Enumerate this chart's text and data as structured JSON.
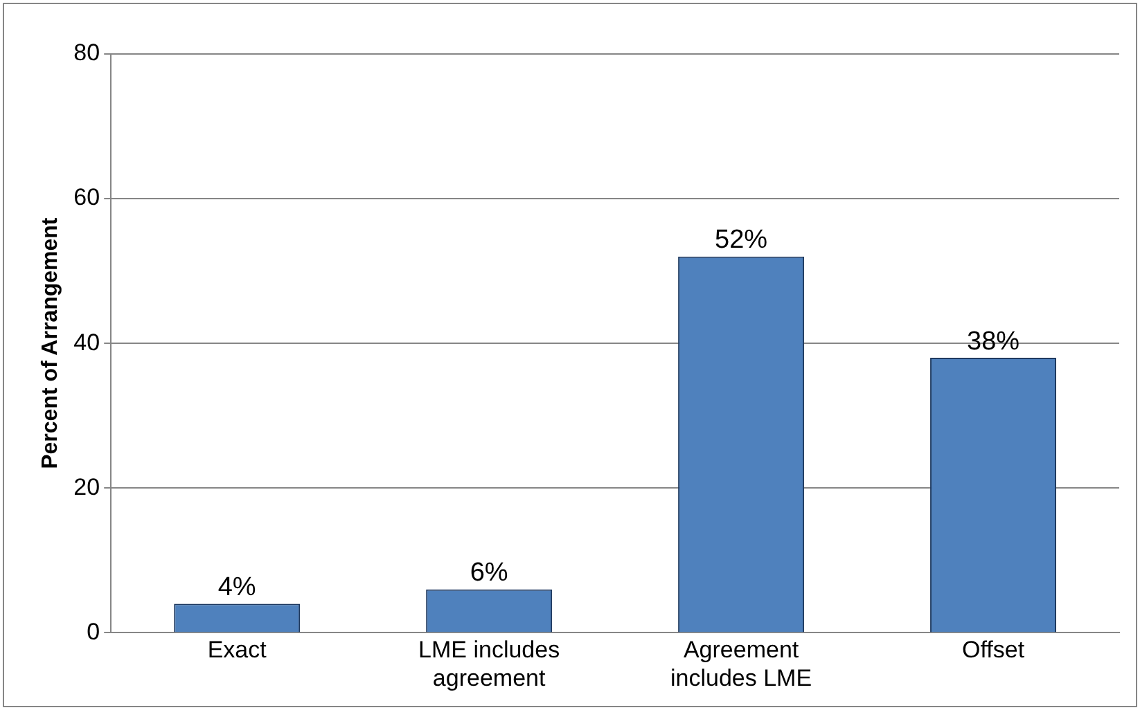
{
  "chart_data": {
    "type": "bar",
    "ylabel": "Percent of Arrangement",
    "categories": [
      "Exact",
      "LME includes agreement",
      "Agreement includes LME",
      "Offset"
    ],
    "values": [
      4,
      6,
      52,
      38
    ],
    "value_labels": [
      "4%",
      "6%",
      "52%",
      "38%"
    ],
    "color": "#4f81bd",
    "ylim": [
      0,
      80
    ],
    "yticks": [
      0,
      20,
      40,
      60,
      80
    ],
    "grid": "y",
    "legend": false
  }
}
